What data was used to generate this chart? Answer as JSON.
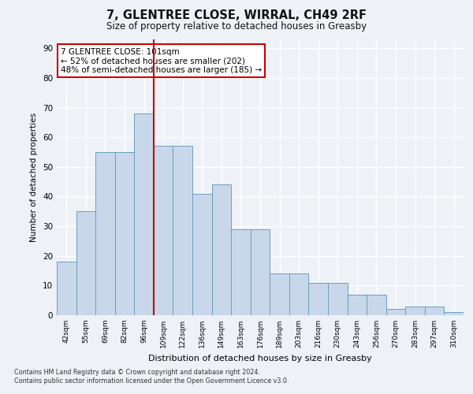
{
  "title_line1": "7, GLENTREE CLOSE, WIRRAL, CH49 2RF",
  "title_line2": "Size of property relative to detached houses in Greasby",
  "xlabel": "Distribution of detached houses by size in Greasby",
  "ylabel": "Number of detached properties",
  "categories": [
    "42sqm",
    "55sqm",
    "69sqm",
    "82sqm",
    "96sqm",
    "109sqm",
    "122sqm",
    "136sqm",
    "149sqm",
    "163sqm",
    "176sqm",
    "189sqm",
    "203sqm",
    "216sqm",
    "230sqm",
    "243sqm",
    "256sqm",
    "270sqm",
    "283sqm",
    "297sqm",
    "310sqm"
  ],
  "values": [
    18,
    35,
    55,
    55,
    68,
    57,
    57,
    41,
    44,
    29,
    29,
    14,
    14,
    11,
    11,
    7,
    7,
    2,
    3,
    3,
    1
  ],
  "bar_color": "#c8d8ea",
  "bar_edge_color": "#6a9ec0",
  "vline_x": 4.5,
  "vline_color": "#cc0000",
  "annotation_text": "7 GLENTREE CLOSE: 101sqm\n← 52% of detached houses are smaller (202)\n48% of semi-detached houses are larger (185) →",
  "annotation_box_color": "#ffffff",
  "annotation_box_edge": "#cc0000",
  "ylim": [
    0,
    93
  ],
  "yticks": [
    0,
    10,
    20,
    30,
    40,
    50,
    60,
    70,
    80,
    90
  ],
  "background_color": "#eef2f7",
  "grid_color": "#ffffff",
  "footer_line1": "Contains HM Land Registry data © Crown copyright and database right 2024.",
  "footer_line2": "Contains public sector information licensed under the Open Government Licence v3.0."
}
